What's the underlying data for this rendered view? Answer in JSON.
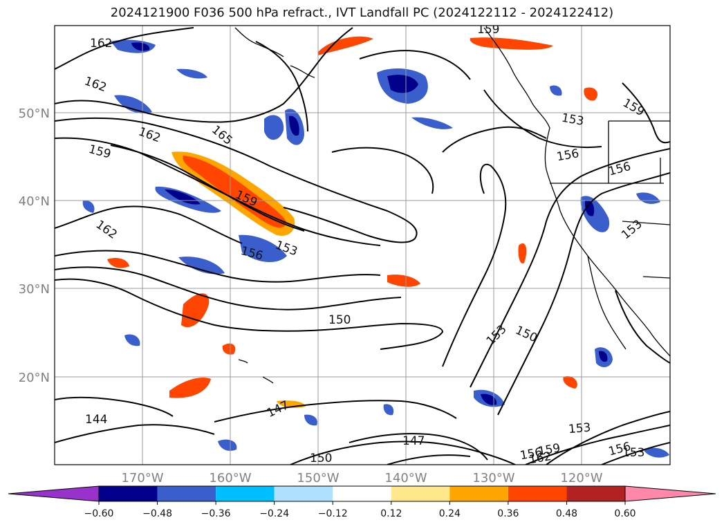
{
  "title": "2024121900 F036 500 hPa refract., IVT Landfall PC (2024122112 - 2024122412)",
  "axes": {
    "lat_labels": [
      "50°N",
      "40°N",
      "30°N",
      "20°N"
    ],
    "lon_labels": [
      "170°W",
      "160°W",
      "150°W",
      "140°W",
      "130°W",
      "120°W"
    ]
  },
  "contour_labels": [
    "162",
    "162",
    "162",
    "159",
    "165",
    "159",
    "162",
    "159",
    "156",
    "153",
    "159",
    "153",
    "156",
    "156",
    "153",
    "150",
    "153",
    "150",
    "147",
    "147",
    "150",
    "144",
    "156",
    "159",
    "162",
    "153",
    "156",
    "153"
  ],
  "colorbar": {
    "ticks": [
      "−0.60",
      "−0.48",
      "−0.36",
      "−0.24",
      "−0.12",
      "0.12",
      "0.24",
      "0.36",
      "0.48",
      "0.60"
    ],
    "colors": {
      "under": "#9932cc",
      "levels": [
        "#00008b",
        "#3a5fcd",
        "#00bfff",
        "#b0e2ff",
        "#ffffff",
        "#ffe88c",
        "#ffa500",
        "#ff4500",
        "#b22222",
        "#ff88aa"
      ],
      "over": "#ff88aa"
    }
  },
  "colors": {
    "neg_dark": "#00008b",
    "neg_mid": "#3a5fcd",
    "neg_light": "#00bfff",
    "pos_light": "#ffe88c",
    "pos_mid": "#ffa500",
    "pos_strong": "#ff4500",
    "pos_dark": "#b22222"
  }
}
